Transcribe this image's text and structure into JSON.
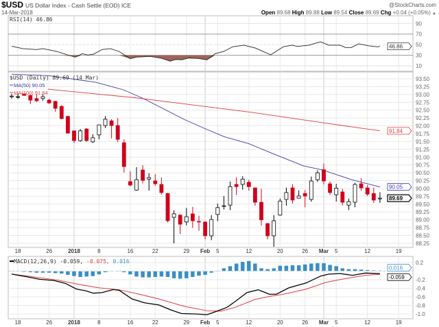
{
  "header": {
    "symbol": "$USD",
    "name": "US Dollar Index - Cash Settle (EOD) ICE",
    "brand": "@StockCharts.com",
    "date": "14-Mar-2018",
    "open_label": "Open",
    "open": "89.68",
    "high_label": "High",
    "high": "89.88",
    "low_label": "Low",
    "low": "89.54",
    "close_label": "Close",
    "close": "89.69",
    "chg_label": "Chg",
    "chg": "+0.04 (+0.05%)",
    "chg_arrow": "▲"
  },
  "colors": {
    "up": "#000000",
    "down": "#d0021b",
    "ma50": "#3a3aa8",
    "ma100": "#e0383e",
    "macd": "#000000",
    "signal": "#e0383e",
    "hist": "#3a8fc4",
    "rsi_fill": "#a0645c"
  },
  "chart_data": [
    {
      "type": "line",
      "panel": "rsi",
      "title": "RSI(14) 46.86",
      "tag": "46.86",
      "ylim": [
        0,
        100
      ],
      "yticks": [
        "90",
        "70",
        "50",
        "30",
        "10"
      ],
      "levels": [
        90,
        70,
        50,
        30,
        10
      ],
      "points": [
        [
          0,
          47
        ],
        [
          1.8,
          42.5
        ],
        [
          4,
          40.8
        ],
        [
          5,
          42.5
        ],
        [
          7.2,
          37.3
        ],
        [
          9.5,
          28.7
        ],
        [
          10.2,
          26.5
        ],
        [
          11.3,
          33
        ],
        [
          12.2,
          30.4
        ],
        [
          13.1,
          32
        ],
        [
          14.5,
          40.8
        ],
        [
          15.8,
          42.5
        ],
        [
          17.2,
          37.3
        ],
        [
          19,
          23.5
        ],
        [
          20,
          26.5
        ],
        [
          22.2,
          27.8
        ],
        [
          24,
          24.4
        ],
        [
          25.4,
          18.8
        ],
        [
          26.3,
          22.2
        ],
        [
          27.2,
          21.3
        ],
        [
          28.3,
          24.8
        ],
        [
          29.9,
          23.9
        ],
        [
          31.3,
          21.3
        ],
        [
          32.6,
          33
        ],
        [
          34,
          37.3
        ],
        [
          35.4,
          46
        ],
        [
          37.2,
          49
        ],
        [
          39,
          43.8
        ],
        [
          41.5,
          30.8
        ],
        [
          43.5,
          46
        ],
        [
          44.9,
          49
        ],
        [
          45.8,
          46.8
        ],
        [
          47.6,
          49
        ],
        [
          49.5,
          55.5
        ],
        [
          50.8,
          49
        ],
        [
          52.6,
          49
        ],
        [
          53.5,
          44.7
        ],
        [
          54.4,
          44.7
        ],
        [
          55.6,
          51.6
        ],
        [
          57.1,
          48.1
        ],
        [
          58.6,
          46
        ],
        [
          59,
          46.86
        ]
      ]
    },
    {
      "type": "candlestick",
      "panel": "price",
      "title": "$USD (Daily) 89.69 (14 Mar)",
      "ylim": [
        88.12,
        93.72
      ],
      "yticks": [
        "93.50",
        "93.25",
        "93.00",
        "92.75",
        "92.50",
        "92.25",
        "92.00",
        "91.75",
        "91.50",
        "91.25",
        "91.00",
        "90.75",
        "90.50",
        "90.25",
        "90.00",
        "89.75",
        "89.50",
        "89.25",
        "89.00",
        "88.75",
        "88.50",
        "88.25"
      ],
      "ohlc": [
        [
          92.95,
          93.02,
          92.87,
          92.95
        ],
        [
          92.93,
          93.02,
          92.86,
          92.93
        ],
        [
          93.02,
          93.03,
          92.96,
          92.97
        ],
        [
          92.97,
          92.99,
          92.69,
          92.82
        ],
        [
          92.87,
          93.02,
          92.76,
          92.8
        ],
        [
          92.87,
          93.0,
          92.8,
          92.93
        ],
        [
          92.82,
          92.86,
          92.7,
          92.73
        ],
        [
          92.78,
          92.8,
          92.45,
          92.56
        ],
        [
          92.62,
          92.66,
          92.21,
          92.23
        ],
        [
          92.3,
          92.33,
          91.75,
          91.77
        ],
        [
          91.84,
          91.84,
          91.45,
          91.53
        ],
        [
          91.53,
          91.9,
          91.49,
          91.84
        ],
        [
          91.9,
          91.93,
          91.49,
          91.53
        ],
        [
          91.49,
          91.73,
          91.45,
          91.62
        ],
        [
          91.71,
          92.04,
          91.57,
          92.03
        ],
        [
          92.01,
          92.31,
          91.93,
          92.21
        ],
        [
          92.16,
          92.21,
          91.6,
          92.01
        ],
        [
          92.01,
          92.25,
          91.48,
          91.57
        ],
        [
          91.46,
          91.57,
          90.51,
          90.7
        ],
        [
          90.22,
          90.55,
          90.07,
          90.11
        ],
        [
          89.95,
          90.68,
          89.93,
          90.28
        ],
        [
          90.59,
          90.74,
          90.16,
          90.26
        ],
        [
          90.3,
          90.49,
          89.93,
          90.35
        ],
        [
          90.24,
          90.46,
          90.09,
          90.15
        ],
        [
          90.13,
          90.35,
          89.81,
          89.87
        ],
        [
          89.84,
          89.86,
          88.92,
          88.97
        ],
        [
          89.08,
          89.3,
          88.25,
          89.19
        ],
        [
          89.15,
          89.18,
          88.55,
          88.86
        ],
        [
          88.93,
          89.38,
          88.82,
          89.1
        ],
        [
          89.19,
          89.41,
          88.75,
          88.97
        ],
        [
          88.95,
          89.13,
          88.65,
          88.93
        ],
        [
          88.93,
          88.95,
          88.38,
          88.49
        ],
        [
          88.49,
          89.15,
          88.35,
          89.01
        ],
        [
          89.17,
          89.52,
          88.96,
          89.39
        ],
        [
          89.43,
          89.76,
          89.33,
          89.45
        ],
        [
          89.47,
          90.22,
          89.31,
          90.06
        ],
        [
          90.13,
          90.36,
          89.79,
          90.06
        ],
        [
          90.13,
          90.39,
          89.96,
          90.3
        ],
        [
          90.2,
          90.28,
          89.93,
          90.06
        ],
        [
          90.02,
          90.03,
          89.45,
          89.56
        ],
        [
          89.56,
          89.99,
          88.82,
          89.0
        ],
        [
          88.88,
          88.9,
          88.38,
          88.49
        ],
        [
          88.49,
          89.15,
          88.14,
          88.97
        ],
        [
          89.15,
          89.68,
          89.13,
          89.6
        ],
        [
          89.65,
          90.03,
          89.45,
          89.87
        ],
        [
          90.02,
          90.14,
          89.52,
          89.63
        ],
        [
          89.69,
          89.94,
          89.68,
          89.76
        ],
        [
          89.84,
          89.95,
          89.4,
          89.76
        ],
        [
          89.65,
          90.38,
          89.58,
          90.24
        ],
        [
          90.28,
          90.58,
          90.21,
          90.5
        ],
        [
          90.6,
          90.8,
          90.13,
          90.24
        ],
        [
          90.15,
          90.22,
          89.8,
          89.87
        ],
        [
          89.8,
          90.15,
          89.58,
          90.01
        ],
        [
          89.89,
          89.99,
          89.46,
          89.56
        ],
        [
          89.47,
          89.68,
          89.31,
          89.58
        ],
        [
          89.56,
          90.18,
          89.4,
          90.13
        ],
        [
          90.15,
          90.33,
          89.93,
          90.02
        ],
        [
          90.02,
          90.11,
          89.76,
          89.82
        ],
        [
          89.84,
          90.03,
          89.54,
          89.63
        ],
        [
          89.68,
          89.88,
          89.54,
          89.69
        ]
      ],
      "series": [
        {
          "name": "MA(50) 90.05",
          "tag": "90.05",
          "points": [
            [
              0,
              93.65
            ],
            [
              6,
              93.6
            ],
            [
              13.5,
              93.39
            ],
            [
              17.9,
              93.15
            ],
            [
              20.9,
              92.89
            ],
            [
              27.8,
              92.19
            ],
            [
              31.1,
              91.9
            ],
            [
              34.1,
              91.65
            ],
            [
              38,
              91.43
            ],
            [
              42,
              91.1
            ],
            [
              46.8,
              90.72
            ],
            [
              49.8,
              90.59
            ],
            [
              54.5,
              90.28
            ],
            [
              59,
              90.05
            ]
          ]
        },
        {
          "name": "MA(100) 91.84",
          "tag": "91.84",
          "points": [
            [
              5.8,
              93.17
            ],
            [
              20.1,
              92.89
            ],
            [
              33.3,
              92.56
            ],
            [
              38.5,
              92.43
            ],
            [
              49.8,
              92.1
            ],
            [
              59,
              91.84
            ]
          ]
        }
      ],
      "last_tag": "89.69"
    },
    {
      "type": "line+bar",
      "panel": "macd",
      "title": "MACD(12,26,9)",
      "values_text": [
        "-0.059,",
        "-0.075,",
        "0.016"
      ],
      "tags": [
        "0.016",
        "-0.059"
      ],
      "ylim": [
        -1.09,
        0.33
      ],
      "yticks": [
        [
          "0.2",
          0.2
        ],
        [
          "-0.2",
          -0.2
        ],
        [
          "-0.4",
          -0.4
        ],
        [
          "-0.6",
          -0.6
        ],
        [
          "-0.8",
          -0.8
        ],
        [
          "-1.0",
          -1.0
        ]
      ],
      "macd": [
        [
          0,
          -0.07
        ],
        [
          2.6,
          -0.136
        ],
        [
          4.5,
          -0.19
        ],
        [
          6.8,
          -0.22
        ],
        [
          8.6,
          -0.285
        ],
        [
          10.4,
          -0.42
        ],
        [
          11.8,
          -0.456
        ],
        [
          13.1,
          -0.515
        ],
        [
          14.5,
          -0.5
        ],
        [
          16.3,
          -0.43
        ],
        [
          17.2,
          -0.445
        ],
        [
          19.3,
          -0.65
        ],
        [
          21.3,
          -0.74
        ],
        [
          23.6,
          -0.79
        ],
        [
          25.4,
          -0.9
        ],
        [
          27.2,
          -0.99
        ],
        [
          29.5,
          -1.0
        ],
        [
          31.3,
          -1.016
        ],
        [
          32.6,
          -0.95
        ],
        [
          34.5,
          -0.845
        ],
        [
          35.8,
          -0.71
        ],
        [
          37.7,
          -0.5
        ],
        [
          39.5,
          -0.435
        ],
        [
          41.3,
          -0.54
        ],
        [
          42.4,
          -0.54
        ],
        [
          44.4,
          -0.39
        ],
        [
          47.2,
          -0.275
        ],
        [
          49.5,
          -0.115
        ],
        [
          50.8,
          -0.07
        ],
        [
          52.6,
          -0.056
        ],
        [
          54.6,
          -0.098
        ],
        [
          56.7,
          -0.045
        ],
        [
          59,
          -0.059
        ]
      ],
      "signal": [
        [
          0,
          -0.07
        ],
        [
          2.6,
          -0.115
        ],
        [
          7.2,
          -0.205
        ],
        [
          10.8,
          -0.31
        ],
        [
          14,
          -0.39
        ],
        [
          17.2,
          -0.435
        ],
        [
          20.8,
          -0.55
        ],
        [
          23.6,
          -0.65
        ],
        [
          27.6,
          -0.82
        ],
        [
          31.3,
          -0.925
        ],
        [
          33.5,
          -0.935
        ],
        [
          35.8,
          -0.845
        ],
        [
          39,
          -0.66
        ],
        [
          41.3,
          -0.59
        ],
        [
          43.5,
          -0.54
        ],
        [
          47.2,
          -0.42
        ],
        [
          50.4,
          -0.26
        ],
        [
          53.2,
          -0.18
        ],
        [
          56.7,
          -0.098
        ],
        [
          59,
          -0.075
        ]
      ],
      "histogram": [
        0,
        -0.01,
        -0.02,
        -0.03,
        -0.04,
        -0.04,
        -0.04,
        -0.05,
        -0.06,
        -0.09,
        -0.12,
        -0.14,
        -0.13,
        -0.12,
        -0.08,
        -0.03,
        -0.01,
        -0.01,
        -0.03,
        -0.08,
        -0.13,
        -0.15,
        -0.15,
        -0.14,
        -0.13,
        -0.14,
        -0.17,
        -0.18,
        -0.17,
        -0.14,
        -0.11,
        -0.09,
        -0.04,
        0.01,
        0.07,
        0.12,
        0.18,
        0.22,
        0.24,
        0.18,
        0.07,
        0.05,
        0.07,
        0.13,
        0.13,
        0.14,
        0.14,
        0.16,
        0.18,
        0.19,
        0.19,
        0.15,
        0.12,
        0.07,
        0.05,
        0.05,
        0.04,
        0.03,
        0.02,
        0.016
      ]
    }
  ],
  "date_axis": [
    [
      "18",
      1,
      false
    ],
    [
      "26",
      6,
      false
    ],
    [
      "2018",
      10,
      true
    ],
    [
      "8",
      14,
      false
    ],
    [
      "16",
      19,
      false
    ],
    [
      "22",
      23,
      false
    ],
    [
      "29",
      28,
      false
    ],
    [
      "Feb",
      31,
      true
    ],
    [
      "5",
      33,
      false
    ],
    [
      "12",
      38,
      false
    ],
    [
      "20",
      43,
      false
    ],
    [
      "26",
      47,
      false
    ],
    [
      "Mar",
      50,
      true
    ],
    [
      "5",
      52,
      false
    ],
    [
      "12",
      57,
      false
    ],
    [
      "19",
      62,
      false
    ]
  ]
}
